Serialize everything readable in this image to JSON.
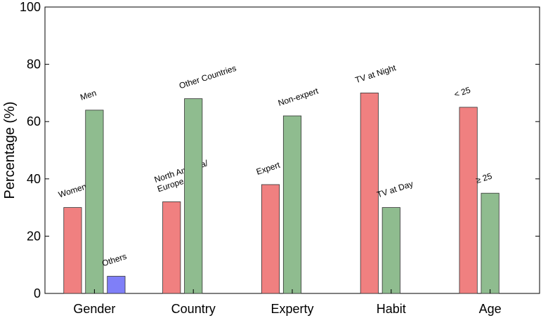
{
  "chart_data": {
    "type": "bar",
    "ylabel": "Percentage (%)",
    "xlabel": "",
    "ylim": [
      0,
      100
    ],
    "yticks": [
      0,
      20,
      40,
      60,
      80,
      100
    ],
    "grid": false,
    "groups": [
      {
        "name": "Gender",
        "bars": [
          {
            "label": "Women",
            "value": 30,
            "color": "#f08080"
          },
          {
            "label": "Men",
            "value": 64,
            "color": "#8fbc8f"
          },
          {
            "label": "Others",
            "value": 6,
            "color": "#7f7ff8"
          }
        ]
      },
      {
        "name": "Country",
        "bars": [
          {
            "label": "North America/\nEurope",
            "value": 32,
            "color": "#f08080"
          },
          {
            "label": "Other Countries",
            "value": 68,
            "color": "#8fbc8f"
          }
        ]
      },
      {
        "name": "Experty",
        "bars": [
          {
            "label": "Expert",
            "value": 38,
            "color": "#f08080"
          },
          {
            "label": "Non-expert",
            "value": 62,
            "color": "#8fbc8f"
          }
        ]
      },
      {
        "name": "Habit",
        "bars": [
          {
            "label": "TV at Night",
            "value": 70,
            "color": "#f08080"
          },
          {
            "label": "TV at Day",
            "value": 30,
            "color": "#8fbc8f"
          }
        ]
      },
      {
        "name": "Age",
        "bars": [
          {
            "label": "< 25",
            "value": 65,
            "color": "#f08080"
          },
          {
            "label": "≥ 25",
            "value": 35,
            "color": "#8fbc8f"
          }
        ]
      }
    ]
  }
}
